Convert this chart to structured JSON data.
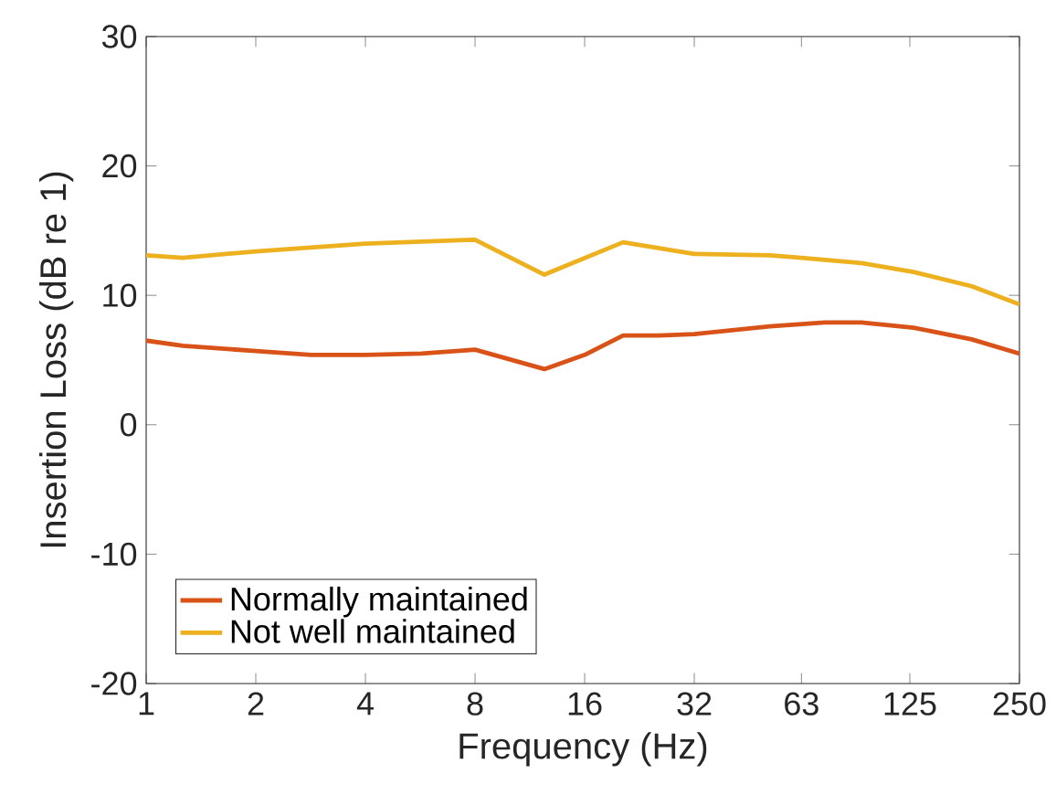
{
  "chart_data": {
    "type": "line",
    "xlabel": "Frequency (Hz)",
    "ylabel": "Insertion Loss (dB re 1)",
    "log": "x",
    "xlim": [
      1,
      250
    ],
    "ylim": [
      -20,
      30
    ],
    "xticks": [
      1,
      2,
      4,
      8,
      16,
      32,
      63,
      125,
      250
    ],
    "yticks": [
      -20,
      -10,
      0,
      10,
      20,
      30
    ],
    "legend": "bottom left",
    "series": [
      {
        "name": "Normally maintained",
        "color": "#d95319",
        "x": [
          1,
          1.26,
          2,
          2.84,
          4,
          5.7,
          8,
          12.4,
          16,
          20.4,
          25.7,
          32,
          51.6,
          73,
          92,
          128,
          185,
          250
        ],
        "values": [
          6.5,
          6.1,
          5.7,
          5.4,
          5.4,
          5.5,
          5.8,
          4.3,
          5.4,
          6.9,
          6.9,
          7.0,
          7.6,
          7.9,
          7.9,
          7.5,
          6.6,
          5.5
        ]
      },
      {
        "name": "Not well maintained",
        "color": "#edb120",
        "x": [
          1,
          1.26,
          2,
          4,
          8,
          12.4,
          20.4,
          32,
          51.6,
          63,
          92,
          128,
          185,
          250
        ],
        "values": [
          13.1,
          12.9,
          13.4,
          14.0,
          14.3,
          11.6,
          14.1,
          13.2,
          13.1,
          12.9,
          12.5,
          11.8,
          10.7,
          9.3
        ]
      }
    ]
  }
}
